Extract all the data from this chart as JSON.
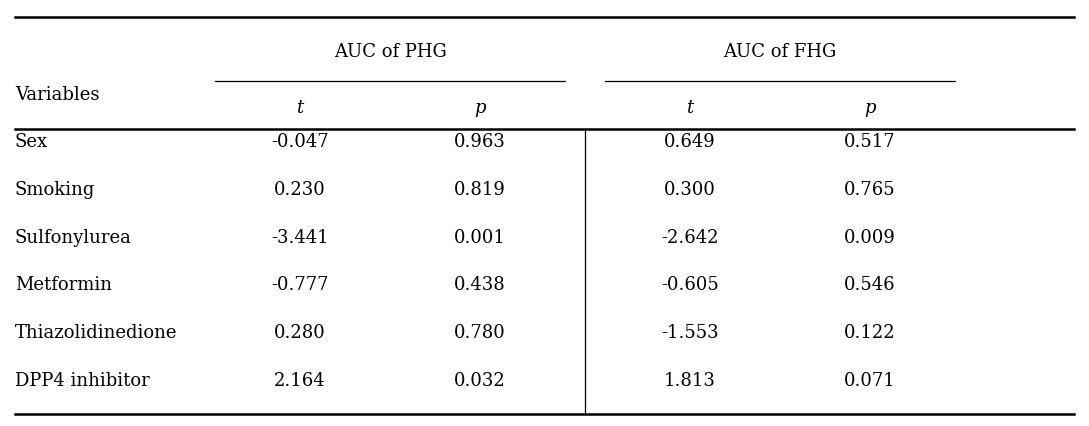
{
  "variables": [
    "Sex",
    "Smoking",
    "Sulfonylurea",
    "Metformin",
    "Thiazolidinedione",
    "DPP4 inhibitor"
  ],
  "phg_t": [
    "-0.047",
    "0.230",
    "-3.441",
    "-0.777",
    "0.280",
    "2.164"
  ],
  "phg_p": [
    "0.963",
    "0.819",
    "0.001",
    "0.438",
    "0.780",
    "0.032"
  ],
  "fhg_t": [
    "0.649",
    "0.300",
    "-2.642",
    "-0.605",
    "-1.553",
    "1.813"
  ],
  "fhg_p": [
    "0.517",
    "0.765",
    "0.009",
    "0.546",
    "0.122",
    "0.071"
  ],
  "col_header_1": "AUC of PHG",
  "col_header_2": "AUC of FHG",
  "sub_header_t": "t",
  "sub_header_p": "p",
  "var_label": "Variables",
  "bg_color": "#ffffff",
  "text_color": "#000000",
  "font_size": 13,
  "figwidth": 10.89,
  "figheight": 4.27,
  "dpi": 100
}
